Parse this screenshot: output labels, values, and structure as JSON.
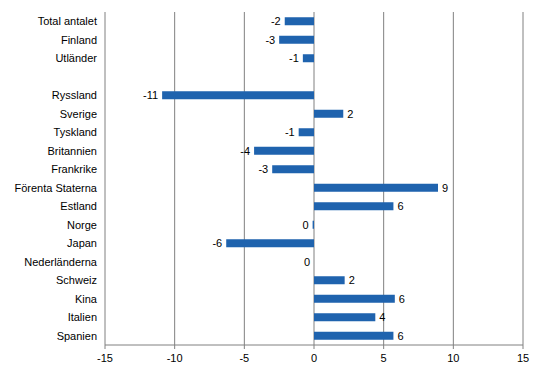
{
  "chart_data": {
    "type": "bar",
    "orientation": "horizontal",
    "color": "#1f63ae",
    "grid": true,
    "data_labels": true,
    "categories": [
      "Total antalet",
      "Finland",
      "Utländer",
      null,
      "Ryssland",
      "Sverige",
      "Tyskland",
      "Britannien",
      "Frankrike",
      "Förenta Staterna",
      "Estland",
      "Norge",
      "Japan",
      "Nederländerna",
      "Schweiz",
      "Kina",
      "Italien",
      "Spanien"
    ],
    "values": [
      -2.1,
      -2.5,
      -0.8,
      null,
      -10.9,
      2.1,
      -1.1,
      -4.3,
      -3.0,
      8.9,
      5.7,
      -0.1,
      -6.3,
      0,
      2.2,
      5.8,
      4.4,
      5.7
    ],
    "value_labels": [
      "-2",
      "-3",
      "-1",
      null,
      "-11",
      "2",
      "-1",
      "-4",
      "-3",
      "9",
      "6",
      "0",
      "-6",
      "0",
      "2",
      "6",
      "4",
      "6"
    ],
    "xlim": [
      -15,
      15
    ],
    "xticks": [
      -15,
      -10,
      -5,
      0,
      5,
      10,
      15
    ]
  }
}
